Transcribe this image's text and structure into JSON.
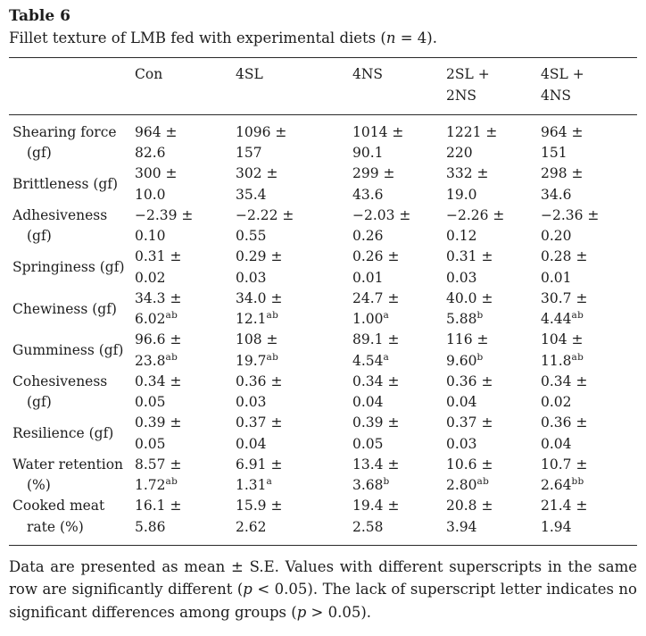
{
  "page_background": "#ffffff",
  "text_color": "#1d1d1d",
  "caption": {
    "label": "Table 6",
    "text_pre": "Fillet texture of LMB fed with experimental diets (",
    "text_var": "n",
    "text_post": " = 4)."
  },
  "table": {
    "columns": [
      {
        "line1": "",
        "line2": ""
      },
      {
        "line1": "Con",
        "line2": ""
      },
      {
        "line1": "4SL",
        "line2": ""
      },
      {
        "line1": "4NS",
        "line2": ""
      },
      {
        "line1": "2SL +",
        "line2": "2NS"
      },
      {
        "line1": "4SL +",
        "line2": "4NS"
      }
    ],
    "rows": [
      {
        "label_line1": "Shearing force",
        "label_line2": "(gf)",
        "cells": [
          {
            "mean": "964 ±",
            "se": "82.6",
            "sup": ""
          },
          {
            "mean": "1096 ±",
            "se": "157",
            "sup": ""
          },
          {
            "mean": "1014 ±",
            "se": "90.1",
            "sup": ""
          },
          {
            "mean": "1221 ±",
            "se": "220",
            "sup": ""
          },
          {
            "mean": "964 ±",
            "se": "151",
            "sup": ""
          }
        ]
      },
      {
        "label_line1": "Brittleness (gf)",
        "label_line2": "",
        "cells": [
          {
            "mean": "300 ±",
            "se": "10.0",
            "sup": ""
          },
          {
            "mean": "302 ±",
            "se": "35.4",
            "sup": ""
          },
          {
            "mean": "299 ±",
            "se": "43.6",
            "sup": ""
          },
          {
            "mean": "332 ±",
            "se": "19.0",
            "sup": ""
          },
          {
            "mean": "298 ±",
            "se": "34.6",
            "sup": ""
          }
        ]
      },
      {
        "label_line1": "Adhesiveness",
        "label_line2": "(gf)",
        "cells": [
          {
            "mean": "−2.39 ±",
            "se": "0.10",
            "sup": ""
          },
          {
            "mean": "−2.22 ±",
            "se": "0.55",
            "sup": ""
          },
          {
            "mean": "−2.03 ±",
            "se": "0.26",
            "sup": ""
          },
          {
            "mean": "−2.26 ±",
            "se": "0.12",
            "sup": ""
          },
          {
            "mean": "−2.36 ±",
            "se": "0.20",
            "sup": ""
          }
        ]
      },
      {
        "label_line1": "Springiness (gf)",
        "label_line2": "",
        "cells": [
          {
            "mean": "0.31 ±",
            "se": "0.02",
            "sup": ""
          },
          {
            "mean": "0.29 ±",
            "se": "0.03",
            "sup": ""
          },
          {
            "mean": "0.26 ±",
            "se": "0.01",
            "sup": ""
          },
          {
            "mean": "0.31 ±",
            "se": "0.03",
            "sup": ""
          },
          {
            "mean": "0.28 ±",
            "se": "0.01",
            "sup": ""
          }
        ]
      },
      {
        "label_line1": "Chewiness (gf)",
        "label_line2": "",
        "cells": [
          {
            "mean": "34.3 ±",
            "se": "6.02",
            "sup": "ab"
          },
          {
            "mean": "34.0 ±",
            "se": "12.1",
            "sup": "ab"
          },
          {
            "mean": "24.7 ±",
            "se": "1.00",
            "sup": "a"
          },
          {
            "mean": "40.0 ±",
            "se": "5.88",
            "sup": "b"
          },
          {
            "mean": "30.7 ±",
            "se": "4.44",
            "sup": "ab"
          }
        ]
      },
      {
        "label_line1": "Gumminess (gf)",
        "label_line2": "",
        "cells": [
          {
            "mean": "96.6 ±",
            "se": "23.8",
            "sup": "ab"
          },
          {
            "mean": "108 ±",
            "se": "19.7",
            "sup": "ab"
          },
          {
            "mean": "89.1 ±",
            "se": "4.54",
            "sup": "a"
          },
          {
            "mean": "116 ±",
            "se": "9.60",
            "sup": "b"
          },
          {
            "mean": "104 ±",
            "se": "11.8",
            "sup": "ab"
          }
        ]
      },
      {
        "label_line1": "Cohesiveness",
        "label_line2": "(gf)",
        "cells": [
          {
            "mean": "0.34 ±",
            "se": "0.05",
            "sup": ""
          },
          {
            "mean": "0.36 ±",
            "se": "0.03",
            "sup": ""
          },
          {
            "mean": "0.34 ±",
            "se": "0.04",
            "sup": ""
          },
          {
            "mean": "0.36 ±",
            "se": "0.04",
            "sup": ""
          },
          {
            "mean": "0.34 ±",
            "se": "0.02",
            "sup": ""
          }
        ]
      },
      {
        "label_line1": "Resilience (gf)",
        "label_line2": "",
        "cells": [
          {
            "mean": "0.39 ±",
            "se": "0.05",
            "sup": ""
          },
          {
            "mean": "0.37 ±",
            "se": "0.04",
            "sup": ""
          },
          {
            "mean": "0.39 ±",
            "se": "0.05",
            "sup": ""
          },
          {
            "mean": "0.37 ±",
            "se": "0.03",
            "sup": ""
          },
          {
            "mean": "0.36 ±",
            "se": "0.04",
            "sup": ""
          }
        ]
      },
      {
        "label_line1": "Water retention",
        "label_line2": "(%)",
        "cells": [
          {
            "mean": "8.57 ±",
            "se": "1.72",
            "sup": "ab"
          },
          {
            "mean": "6.91 ±",
            "se": "1.31",
            "sup": "a"
          },
          {
            "mean": "13.4 ±",
            "se": "3.68",
            "sup": "b"
          },
          {
            "mean": "10.6 ±",
            "se": "2.80",
            "sup": "ab"
          },
          {
            "mean": "10.7 ±",
            "se": "2.64",
            "sup": "bb"
          }
        ]
      },
      {
        "label_line1": "Cooked meat",
        "label_line2": "rate (%)",
        "cells": [
          {
            "mean": "16.1 ±",
            "se": "5.86",
            "sup": ""
          },
          {
            "mean": "15.9 ±",
            "se": "2.62",
            "sup": ""
          },
          {
            "mean": "19.4 ±",
            "se": "2.58",
            "sup": ""
          },
          {
            "mean": "20.8 ±",
            "se": "3.94",
            "sup": ""
          },
          {
            "mean": "21.4 ±",
            "se": "1.94",
            "sup": ""
          }
        ]
      }
    ]
  },
  "footnote": {
    "part1": "Data are presented as mean ± S.E. Values with different superscripts in the same row are significantly different (",
    "var1": "p",
    "part2": " < 0.05). The lack of superscript letter indicates no significant differences among groups (",
    "var2": "p",
    "part3": " > 0.05)."
  }
}
